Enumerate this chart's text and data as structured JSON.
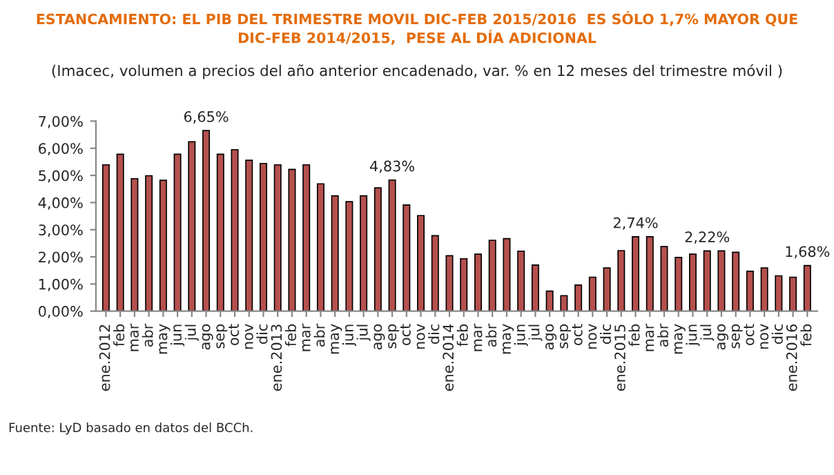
{
  "chart_data": {
    "type": "bar",
    "title": "ESTANCAMIENTO: EL PIB DEL TRIMESTRE MOVIL DIC-FEB 2015/2016  ES SÓLO 1,7% MAYOR QUE\nDIC-FEB 2014/2015,  PESE AL DÍA ADICIONAL",
    "subtitle": "(Imacec, volumen a precios del año anterior encadenado, var. % en 12 meses del trimestre móvil )",
    "annotations": [
      "Fuente: LyD basado en datos del BCCh."
    ],
    "categories": [
      "ene.2012",
      "feb",
      "mar",
      "abr",
      "may",
      "jun",
      "jul",
      "ago",
      "sep",
      "oct",
      "nov",
      "dic",
      "ene.2013",
      "feb",
      "mar",
      "abr",
      "may",
      "jun",
      "jul",
      "ago",
      "sep",
      "oct",
      "nov",
      "dic",
      "ene.2014",
      "feb",
      "mar",
      "abr",
      "may",
      "jun",
      "jul",
      "ago",
      "sep",
      "oct",
      "nov",
      "dic",
      "ene.2015",
      "feb",
      "mar",
      "abr",
      "may",
      "jun",
      "jul",
      "ago",
      "sep",
      "oct",
      "nov",
      "dic",
      "ene.2016",
      "feb"
    ],
    "values": [
      5.39,
      5.78,
      4.88,
      4.99,
      4.82,
      5.78,
      6.24,
      6.65,
      5.78,
      5.95,
      5.56,
      5.44,
      5.39,
      5.22,
      5.39,
      4.69,
      4.25,
      4.03,
      4.25,
      4.54,
      4.83,
      3.91,
      3.52,
      2.78,
      2.04,
      1.93,
      2.1,
      2.61,
      2.67,
      2.21,
      1.7,
      0.74,
      0.57,
      0.96,
      1.25,
      1.59,
      2.23,
      2.74,
      2.74,
      2.38,
      1.98,
      2.1,
      2.22,
      2.22,
      2.17,
      1.47,
      1.59,
      1.3,
      1.25,
      1.68
    ],
    "value_labels": [
      null,
      null,
      null,
      null,
      null,
      null,
      null,
      "6,65%",
      null,
      null,
      null,
      null,
      null,
      null,
      null,
      null,
      null,
      null,
      null,
      null,
      "4,83%",
      null,
      null,
      null,
      null,
      null,
      null,
      null,
      null,
      null,
      null,
      null,
      null,
      null,
      null,
      null,
      null,
      "2,74%",
      null,
      null,
      null,
      null,
      "2,22%",
      null,
      null,
      null,
      null,
      null,
      null,
      "1,68%"
    ],
    "color": "#b5504d",
    "ylim": [
      0,
      7
    ],
    "yticks": [
      {
        "value": 0,
        "label": "0,00%"
      },
      {
        "value": 1,
        "label": "1,00%"
      },
      {
        "value": 2,
        "label": "2,00%"
      },
      {
        "value": 3,
        "label": "3,00%"
      },
      {
        "value": 4,
        "label": "4,00%"
      },
      {
        "value": 5,
        "label": "5,00%"
      },
      {
        "value": 6,
        "label": "6,00%"
      },
      {
        "value": 7,
        "label": "7,00%"
      }
    ],
    "grid": false,
    "legend": false
  }
}
